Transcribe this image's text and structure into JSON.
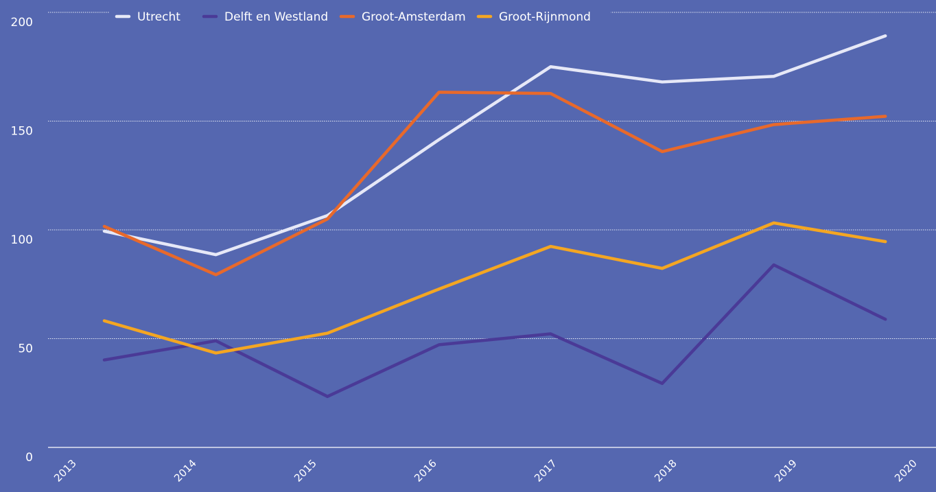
{
  "chart_data": {
    "type": "line",
    "categories": [
      "2013",
      "2014",
      "2015",
      "2016",
      "2017",
      "2018",
      "2019",
      "2020"
    ],
    "series": [
      {
        "name": "Utrecht",
        "color": "#e6e8f7",
        "values": [
          99.4,
          88.6,
          106.6,
          141.5,
          175,
          168,
          170.6,
          189.2
        ]
      },
      {
        "name": "Delft en Westland",
        "color": "#4a3a97",
        "values": [
          40.2,
          49,
          23.4,
          47.2,
          52.2,
          29.4,
          83.9,
          58.9
        ]
      },
      {
        "name": "Groot-Amsterdam",
        "color": "#e8692b",
        "values": [
          101.6,
          79.4,
          105,
          163.3,
          162.7,
          136,
          148.4,
          152.2
        ]
      },
      {
        "name": "Groot-Rijnmond",
        "color": "#f4a622",
        "values": [
          58.2,
          43.4,
          52.5,
          72.8,
          92.4,
          82.3,
          103.2,
          94.6
        ]
      }
    ],
    "ylim": [
      0,
      200
    ],
    "yticks": [
      0,
      50,
      100,
      150,
      200
    ],
    "grid": true,
    "legend": "top"
  }
}
